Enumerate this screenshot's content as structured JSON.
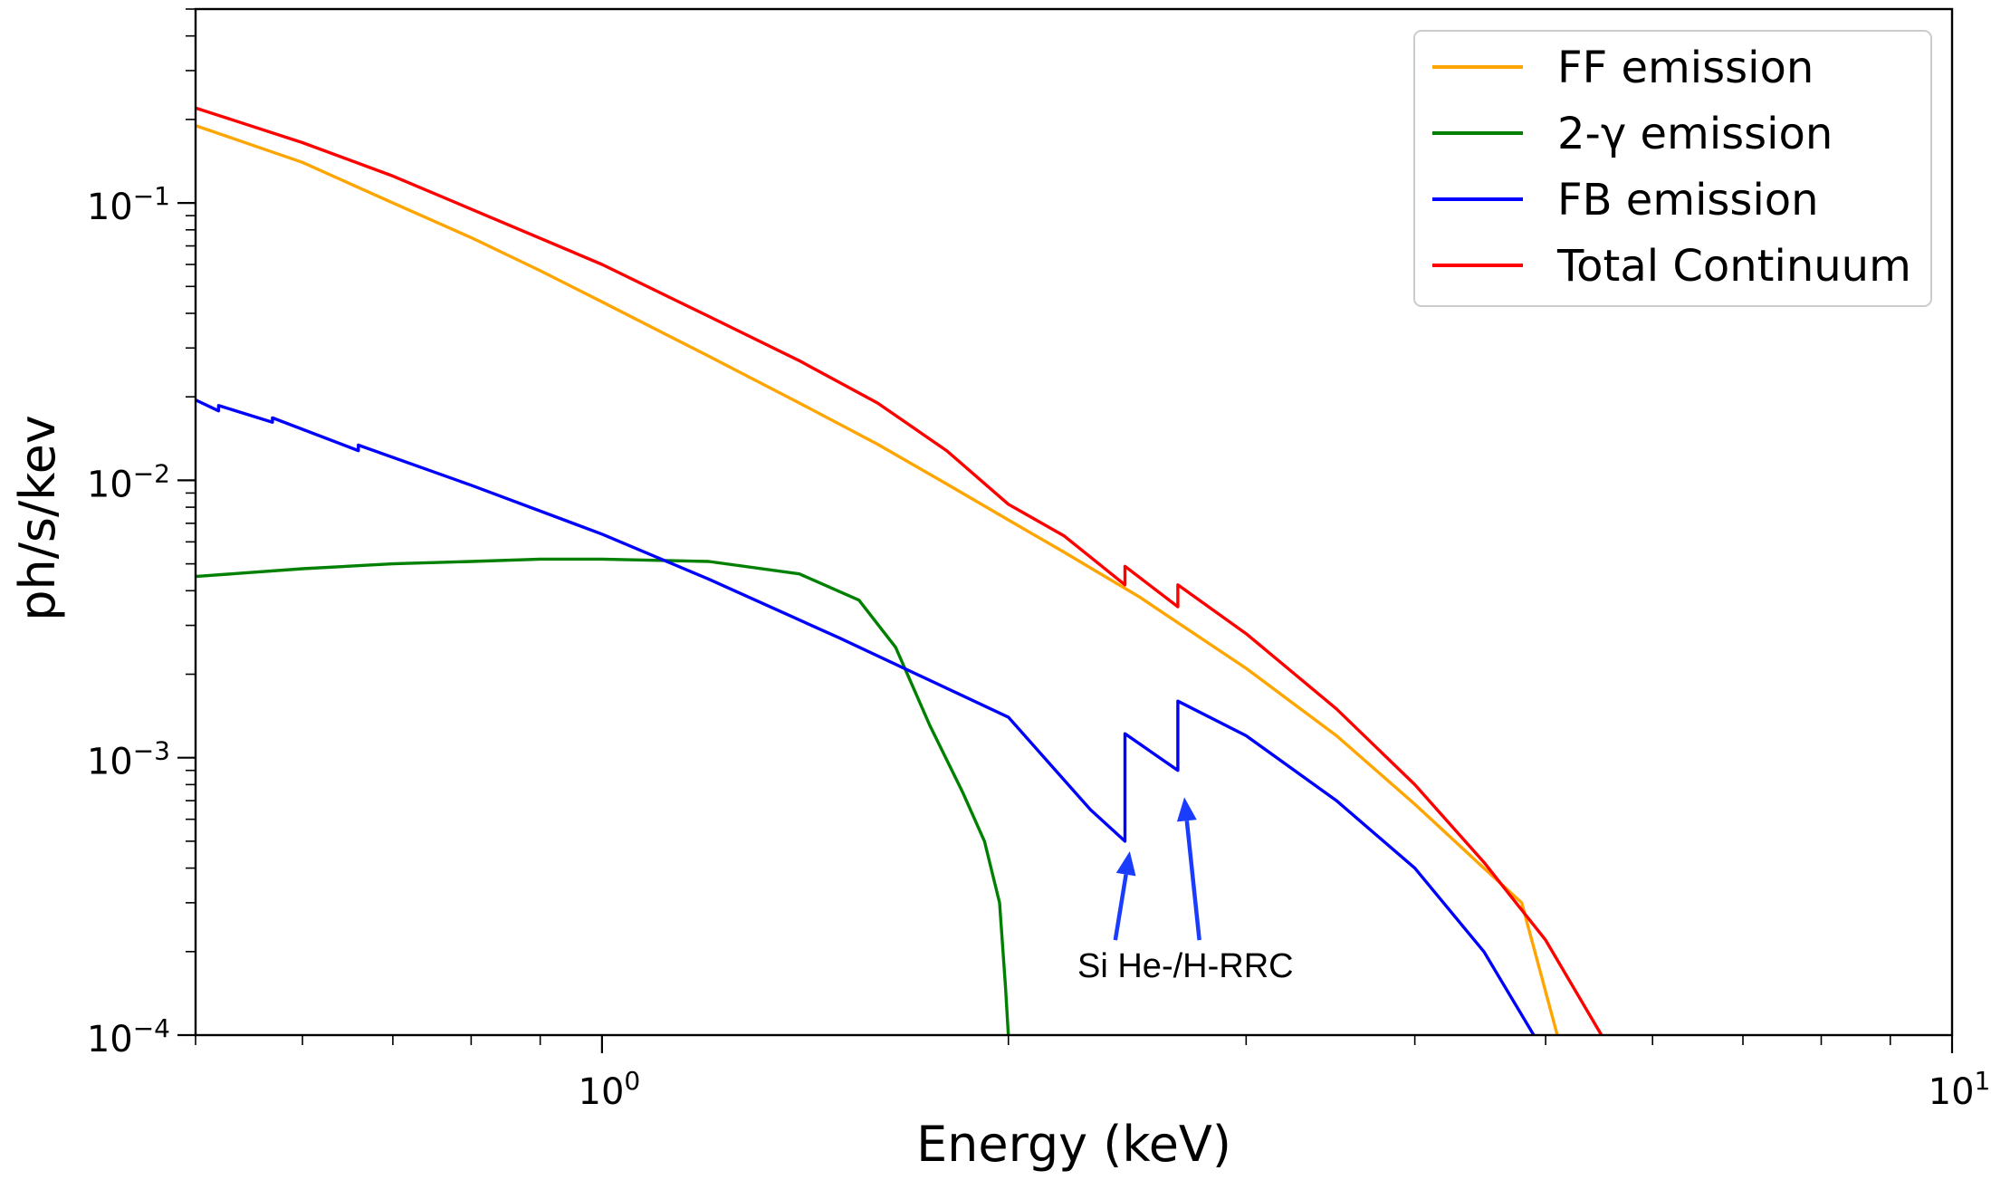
{
  "chart_data": {
    "type": "line",
    "title": "",
    "xlabel": "Energy (keV)",
    "ylabel": "ph/s/kev",
    "xscale": "log",
    "yscale": "log",
    "xlim": [
      0.5,
      10
    ],
    "ylim": [
      0.0001,
      0.5
    ],
    "x_ticks": [
      {
        "value": 1,
        "base": "10",
        "exp": "0"
      },
      {
        "value": 10,
        "base": "10",
        "exp": "1"
      }
    ],
    "y_ticks": [
      {
        "value": 0.0001,
        "base": "10",
        "exp": "−4"
      },
      {
        "value": 0.001,
        "base": "10",
        "exp": "−3"
      },
      {
        "value": 0.01,
        "base": "10",
        "exp": "−2"
      },
      {
        "value": 0.1,
        "base": "10",
        "exp": "−1"
      }
    ],
    "legend_position": "top-right",
    "series": [
      {
        "name": "FF emission",
        "color": "#ffa500",
        "points": [
          [
            0.5,
            0.19
          ],
          [
            0.6,
            0.14
          ],
          [
            0.7,
            0.1
          ],
          [
            0.8,
            0.075
          ],
          [
            0.9,
            0.057
          ],
          [
            1.0,
            0.044
          ],
          [
            1.2,
            0.028
          ],
          [
            1.4,
            0.019
          ],
          [
            1.6,
            0.0135
          ],
          [
            1.8,
            0.0097
          ],
          [
            2.0,
            0.0072
          ],
          [
            2.2,
            0.0055
          ],
          [
            2.5,
            0.0038
          ],
          [
            3.0,
            0.0021
          ],
          [
            3.5,
            0.0012
          ],
          [
            4.0,
            0.00068
          ],
          [
            4.5,
            0.0004
          ],
          [
            4.8,
            0.0003
          ],
          [
            5.1,
            0.0001
          ]
        ]
      },
      {
        "name": "2-γ emission",
        "color": "#008000",
        "points": [
          [
            0.5,
            0.0045
          ],
          [
            0.6,
            0.0048
          ],
          [
            0.7,
            0.005
          ],
          [
            0.8,
            0.0051
          ],
          [
            0.9,
            0.0052
          ],
          [
            1.0,
            0.0052
          ],
          [
            1.2,
            0.0051
          ],
          [
            1.4,
            0.0046
          ],
          [
            1.55,
            0.0037
          ],
          [
            1.65,
            0.0025
          ],
          [
            1.75,
            0.0013
          ],
          [
            1.85,
            0.00075
          ],
          [
            1.92,
            0.0005
          ],
          [
            1.97,
            0.0003
          ],
          [
            1.99,
            0.00015
          ],
          [
            2.0,
            0.0001
          ]
        ]
      },
      {
        "name": "FB emission",
        "color": "#0000ff",
        "points": [
          [
            0.5,
            0.0195
          ],
          [
            0.52,
            0.0178
          ],
          [
            0.52,
            0.0186
          ],
          [
            0.57,
            0.0162
          ],
          [
            0.57,
            0.0168
          ],
          [
            0.66,
            0.0128
          ],
          [
            0.66,
            0.0134
          ],
          [
            0.8,
            0.0096
          ],
          [
            1.0,
            0.0064
          ],
          [
            1.2,
            0.0044
          ],
          [
            1.5,
            0.0027
          ],
          [
            2.0,
            0.0014
          ],
          [
            2.3,
            0.00065
          ],
          [
            2.44,
            0.0005
          ],
          [
            2.44,
            0.00122
          ],
          [
            2.67,
            0.0009
          ],
          [
            2.67,
            0.0016
          ],
          [
            3.0,
            0.0012
          ],
          [
            3.5,
            0.0007
          ],
          [
            4.0,
            0.0004
          ],
          [
            4.5,
            0.0002
          ],
          [
            4.9,
            0.0001
          ]
        ]
      },
      {
        "name": "Total Continuum",
        "color": "#ff0000",
        "points": [
          [
            0.5,
            0.22
          ],
          [
            0.6,
            0.165
          ],
          [
            0.7,
            0.125
          ],
          [
            0.8,
            0.095
          ],
          [
            1.0,
            0.06
          ],
          [
            1.2,
            0.039
          ],
          [
            1.4,
            0.027
          ],
          [
            1.6,
            0.019
          ],
          [
            1.8,
            0.0128
          ],
          [
            2.0,
            0.0082
          ],
          [
            2.2,
            0.0063
          ],
          [
            2.44,
            0.0042
          ],
          [
            2.44,
            0.0049
          ],
          [
            2.67,
            0.0035
          ],
          [
            2.67,
            0.0042
          ],
          [
            3.0,
            0.0028
          ],
          [
            3.5,
            0.0015
          ],
          [
            4.0,
            0.0008
          ],
          [
            4.5,
            0.00042
          ],
          [
            5.0,
            0.00022
          ],
          [
            5.5,
            0.0001
          ]
        ]
      }
    ],
    "annotations": [
      {
        "text": "Si He-/H-RRC",
        "color": "#1a3cff",
        "anchor": [
          2.25,
          0.00018
        ],
        "arrows": [
          {
            "from": [
              2.4,
              0.00022
            ],
            "to": [
              2.46,
              0.00046
            ]
          },
          {
            "from": [
              2.77,
              0.00022
            ],
            "to": [
              2.7,
              0.00072
            ]
          }
        ]
      }
    ]
  }
}
